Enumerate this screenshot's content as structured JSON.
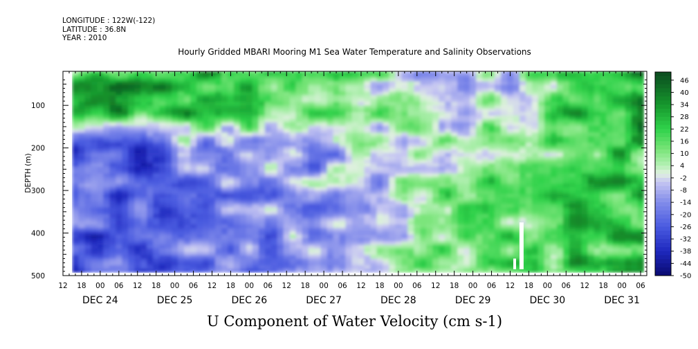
{
  "header": {
    "longitude": "LONGITUDE : 122W(-122)",
    "latitude": "LATITUDE : 36.8N",
    "year": "YEAR : 2010"
  },
  "colors": {
    "positive_max": "#0b4a1f",
    "positive_mid": "#2fd24a",
    "near_zero_pos": "#b5f0b5",
    "near_zero_neg": "#c6c6f2",
    "negative_mid": "#4a5be0",
    "negative_max": "#0a0a70"
  },
  "chart_data": {
    "type": "heatmap",
    "title": "Hourly Gridded MBARI Mooring M1 Sea Water Temperature and Salinity Observations",
    "bottom_title": "U Component of Water Velocity (cm s-1)",
    "ylabel": "DEPTH (m)",
    "xlabel": "",
    "y_axis": {
      "inverted": true,
      "range": [
        20,
        500
      ],
      "ticks": [
        100,
        200,
        300,
        400,
        500
      ]
    },
    "x_axis": {
      "start": "2010-12-23T12:00",
      "end": "2010-12-31T08:00",
      "hour_ticks": [
        {
          "time": "2010-12-23T12:00",
          "label": "12"
        },
        {
          "time": "2010-12-23T18:00",
          "label": "18"
        },
        {
          "time": "2010-12-24T00:00",
          "label": "00"
        },
        {
          "time": "2010-12-24T06:00",
          "label": "06"
        },
        {
          "time": "2010-12-24T12:00",
          "label": "12"
        },
        {
          "time": "2010-12-24T18:00",
          "label": "18"
        },
        {
          "time": "2010-12-25T00:00",
          "label": "00"
        },
        {
          "time": "2010-12-25T06:00",
          "label": "06"
        },
        {
          "time": "2010-12-25T12:00",
          "label": "12"
        },
        {
          "time": "2010-12-25T18:00",
          "label": "18"
        },
        {
          "time": "2010-12-26T00:00",
          "label": "00"
        },
        {
          "time": "2010-12-26T06:00",
          "label": "06"
        },
        {
          "time": "2010-12-26T12:00",
          "label": "12"
        },
        {
          "time": "2010-12-26T18:00",
          "label": "18"
        },
        {
          "time": "2010-12-27T00:00",
          "label": "00"
        },
        {
          "time": "2010-12-27T06:00",
          "label": "06"
        },
        {
          "time": "2010-12-27T12:00",
          "label": "12"
        },
        {
          "time": "2010-12-27T18:00",
          "label": "18"
        },
        {
          "time": "2010-12-28T00:00",
          "label": "00"
        },
        {
          "time": "2010-12-28T06:00",
          "label": "06"
        },
        {
          "time": "2010-12-28T12:00",
          "label": "12"
        },
        {
          "time": "2010-12-28T18:00",
          "label": "18"
        },
        {
          "time": "2010-12-29T00:00",
          "label": "00"
        },
        {
          "time": "2010-12-29T06:00",
          "label": "06"
        },
        {
          "time": "2010-12-29T12:00",
          "label": "12"
        },
        {
          "time": "2010-12-29T18:00",
          "label": "18"
        },
        {
          "time": "2010-12-30T00:00",
          "label": "00"
        },
        {
          "time": "2010-12-30T06:00",
          "label": "06"
        },
        {
          "time": "2010-12-30T12:00",
          "label": "12"
        },
        {
          "time": "2010-12-30T18:00",
          "label": "18"
        },
        {
          "time": "2010-12-31T00:00",
          "label": "00"
        },
        {
          "time": "2010-12-31T06:00",
          "label": "06"
        }
      ],
      "day_labels": [
        {
          "time": "2010-12-24T00:00",
          "label": "DEC 24"
        },
        {
          "time": "2010-12-25T00:00",
          "label": "DEC 25"
        },
        {
          "time": "2010-12-26T00:00",
          "label": "DEC 26"
        },
        {
          "time": "2010-12-27T00:00",
          "label": "DEC 27"
        },
        {
          "time": "2010-12-28T00:00",
          "label": "DEC 28"
        },
        {
          "time": "2010-12-29T00:00",
          "label": "DEC 29"
        },
        {
          "time": "2010-12-30T00:00",
          "label": "DEC 30"
        },
        {
          "time": "2010-12-31T00:00",
          "label": "DEC 31"
        }
      ]
    },
    "data_extent": {
      "start": "2010-12-23T15:00",
      "end": "2010-12-31T07:00",
      "depth_min": 20,
      "depth_max": 485
    },
    "colorbar": {
      "range": [
        -50,
        50
      ],
      "labels": [
        "46",
        "40",
        "34",
        "28",
        "22",
        "16",
        "10",
        "4",
        "-2",
        "-8",
        "-14",
        "-20",
        "-26",
        "-32",
        "-38",
        "-44",
        "-50"
      ]
    },
    "approximate_pattern": [
      {
        "day": "2010-12-23",
        "upper_0_150m": 28,
        "lower_150_485m": -24
      },
      {
        "day": "2010-12-24",
        "upper_0_150m": 28,
        "lower_150_485m": -24
      },
      {
        "day": "2010-12-25",
        "upper_0_150m": 26,
        "lower_150_485m": -18
      },
      {
        "day": "2010-12-26",
        "upper_0_150m": 18,
        "lower_150_485m": -10
      },
      {
        "day": "2010-12-27",
        "upper_0_150m": 6,
        "lower_150_485m": -8
      },
      {
        "day": "2010-12-28",
        "upper_0_150m": -4,
        "lower_150_485m": 8
      },
      {
        "day": "2010-12-29",
        "upper_0_150m": 0,
        "lower_150_485m": 14
      },
      {
        "day": "2010-12-30",
        "upper_0_150m": 30,
        "lower_150_485m": 22
      }
    ]
  }
}
